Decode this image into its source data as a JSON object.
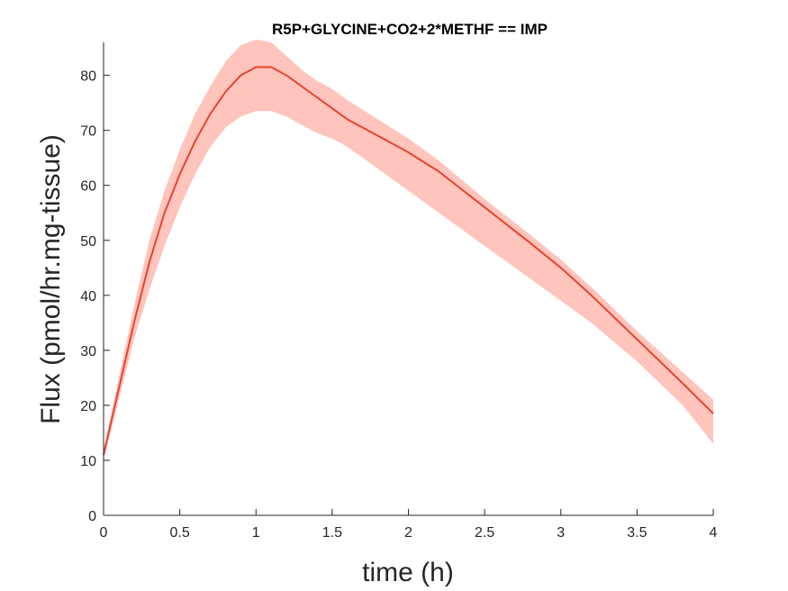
{
  "chart_data": {
    "type": "line",
    "title": "R5P+GLYCINE+CO2+2*METHF == IMP",
    "xlabel": "time (h)",
    "ylabel": "Flux (pmol/hr.mg-tissue)",
    "xlim": [
      0,
      4
    ],
    "ylim": [
      0,
      86
    ],
    "xticks": [
      0,
      0.5,
      1,
      1.5,
      2,
      2.5,
      3,
      3.5,
      4
    ],
    "xtick_labels": [
      "0",
      "0.5",
      "1",
      "1.5",
      "2",
      "2.5",
      "3",
      "3.5",
      "4"
    ],
    "yticks": [
      0,
      10,
      20,
      30,
      40,
      50,
      60,
      70,
      80
    ],
    "ytick_labels": [
      "0",
      "10",
      "20",
      "30",
      "40",
      "50",
      "60",
      "70",
      "80"
    ],
    "grid": false,
    "colors": {
      "line": "#e8432c",
      "band": "#ffc4bc",
      "axis": "#262626"
    },
    "series": [
      {
        "x": [
          0,
          0.1,
          0.2,
          0.3,
          0.4,
          0.5,
          0.6,
          0.7,
          0.8,
          0.9,
          1.0,
          1.1,
          1.2,
          1.3,
          1.4,
          1.5,
          1.6,
          1.8,
          2.0,
          2.2,
          2.5,
          2.8,
          3.0,
          3.2,
          3.5,
          3.8,
          4.0
        ],
        "y": [
          11,
          23,
          35,
          46,
          55,
          62,
          68,
          73,
          77,
          80,
          81.5,
          81.5,
          80,
          78,
          76,
          74,
          72,
          69,
          66,
          62.5,
          56,
          49.5,
          45,
          40,
          32,
          24,
          18.5
        ],
        "lower": [
          10,
          21,
          32,
          41,
          49,
          56,
          62,
          67,
          70.5,
          72.5,
          73.5,
          73.5,
          72.5,
          71,
          69.5,
          68.5,
          67,
          63,
          59,
          55,
          49,
          43,
          39,
          35,
          28,
          20,
          13
        ],
        "upper": [
          12,
          25,
          38,
          50,
          59,
          66.5,
          73,
          78,
          82.5,
          85.5,
          86.5,
          86,
          83.5,
          81,
          79,
          77.5,
          75.5,
          72,
          68.5,
          64.5,
          57.5,
          51,
          46.5,
          41.5,
          33.5,
          26,
          21
        ]
      }
    ]
  }
}
